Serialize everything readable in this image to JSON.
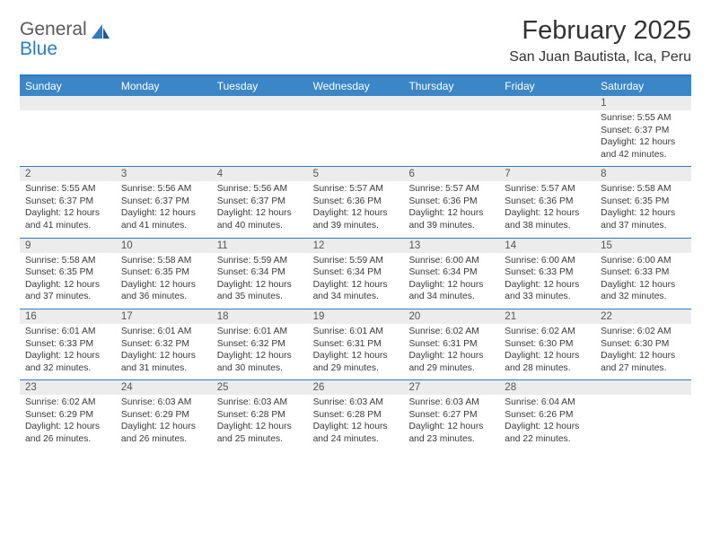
{
  "logo": {
    "word1": "General",
    "word2": "Blue"
  },
  "title": "February 2025",
  "location": "San Juan Bautista, Ica, Peru",
  "colors": {
    "header_bar": "#3b86c7",
    "accent_line": "#2f7bbf",
    "daynum_bg": "#ececec",
    "bg": "#ffffff",
    "text": "#3a3a3a"
  },
  "fonts": {
    "title_pt": 29,
    "location_pt": 16,
    "dayheader_pt": 12,
    "daynum_pt": 11.5,
    "body_pt": 10.3
  },
  "dayHeaders": [
    "Sunday",
    "Monday",
    "Tuesday",
    "Wednesday",
    "Thursday",
    "Friday",
    "Saturday"
  ],
  "weeks": [
    [
      {
        "n": "",
        "lines": [
          "",
          "",
          "",
          ""
        ]
      },
      {
        "n": "",
        "lines": [
          "",
          "",
          "",
          ""
        ]
      },
      {
        "n": "",
        "lines": [
          "",
          "",
          "",
          ""
        ]
      },
      {
        "n": "",
        "lines": [
          "",
          "",
          "",
          ""
        ]
      },
      {
        "n": "",
        "lines": [
          "",
          "",
          "",
          ""
        ]
      },
      {
        "n": "",
        "lines": [
          "",
          "",
          "",
          ""
        ]
      },
      {
        "n": "1",
        "lines": [
          "Sunrise: 5:55 AM",
          "Sunset: 6:37 PM",
          "Daylight: 12 hours",
          "and 42 minutes."
        ]
      }
    ],
    [
      {
        "n": "2",
        "lines": [
          "Sunrise: 5:55 AM",
          "Sunset: 6:37 PM",
          "Daylight: 12 hours",
          "and 41 minutes."
        ]
      },
      {
        "n": "3",
        "lines": [
          "Sunrise: 5:56 AM",
          "Sunset: 6:37 PM",
          "Daylight: 12 hours",
          "and 41 minutes."
        ]
      },
      {
        "n": "4",
        "lines": [
          "Sunrise: 5:56 AM",
          "Sunset: 6:37 PM",
          "Daylight: 12 hours",
          "and 40 minutes."
        ]
      },
      {
        "n": "5",
        "lines": [
          "Sunrise: 5:57 AM",
          "Sunset: 6:36 PM",
          "Daylight: 12 hours",
          "and 39 minutes."
        ]
      },
      {
        "n": "6",
        "lines": [
          "Sunrise: 5:57 AM",
          "Sunset: 6:36 PM",
          "Daylight: 12 hours",
          "and 39 minutes."
        ]
      },
      {
        "n": "7",
        "lines": [
          "Sunrise: 5:57 AM",
          "Sunset: 6:36 PM",
          "Daylight: 12 hours",
          "and 38 minutes."
        ]
      },
      {
        "n": "8",
        "lines": [
          "Sunrise: 5:58 AM",
          "Sunset: 6:35 PM",
          "Daylight: 12 hours",
          "and 37 minutes."
        ]
      }
    ],
    [
      {
        "n": "9",
        "lines": [
          "Sunrise: 5:58 AM",
          "Sunset: 6:35 PM",
          "Daylight: 12 hours",
          "and 37 minutes."
        ]
      },
      {
        "n": "10",
        "lines": [
          "Sunrise: 5:58 AM",
          "Sunset: 6:35 PM",
          "Daylight: 12 hours",
          "and 36 minutes."
        ]
      },
      {
        "n": "11",
        "lines": [
          "Sunrise: 5:59 AM",
          "Sunset: 6:34 PM",
          "Daylight: 12 hours",
          "and 35 minutes."
        ]
      },
      {
        "n": "12",
        "lines": [
          "Sunrise: 5:59 AM",
          "Sunset: 6:34 PM",
          "Daylight: 12 hours",
          "and 34 minutes."
        ]
      },
      {
        "n": "13",
        "lines": [
          "Sunrise: 6:00 AM",
          "Sunset: 6:34 PM",
          "Daylight: 12 hours",
          "and 34 minutes."
        ]
      },
      {
        "n": "14",
        "lines": [
          "Sunrise: 6:00 AM",
          "Sunset: 6:33 PM",
          "Daylight: 12 hours",
          "and 33 minutes."
        ]
      },
      {
        "n": "15",
        "lines": [
          "Sunrise: 6:00 AM",
          "Sunset: 6:33 PM",
          "Daylight: 12 hours",
          "and 32 minutes."
        ]
      }
    ],
    [
      {
        "n": "16",
        "lines": [
          "Sunrise: 6:01 AM",
          "Sunset: 6:33 PM",
          "Daylight: 12 hours",
          "and 32 minutes."
        ]
      },
      {
        "n": "17",
        "lines": [
          "Sunrise: 6:01 AM",
          "Sunset: 6:32 PM",
          "Daylight: 12 hours",
          "and 31 minutes."
        ]
      },
      {
        "n": "18",
        "lines": [
          "Sunrise: 6:01 AM",
          "Sunset: 6:32 PM",
          "Daylight: 12 hours",
          "and 30 minutes."
        ]
      },
      {
        "n": "19",
        "lines": [
          "Sunrise: 6:01 AM",
          "Sunset: 6:31 PM",
          "Daylight: 12 hours",
          "and 29 minutes."
        ]
      },
      {
        "n": "20",
        "lines": [
          "Sunrise: 6:02 AM",
          "Sunset: 6:31 PM",
          "Daylight: 12 hours",
          "and 29 minutes."
        ]
      },
      {
        "n": "21",
        "lines": [
          "Sunrise: 6:02 AM",
          "Sunset: 6:30 PM",
          "Daylight: 12 hours",
          "and 28 minutes."
        ]
      },
      {
        "n": "22",
        "lines": [
          "Sunrise: 6:02 AM",
          "Sunset: 6:30 PM",
          "Daylight: 12 hours",
          "and 27 minutes."
        ]
      }
    ],
    [
      {
        "n": "23",
        "lines": [
          "Sunrise: 6:02 AM",
          "Sunset: 6:29 PM",
          "Daylight: 12 hours",
          "and 26 minutes."
        ]
      },
      {
        "n": "24",
        "lines": [
          "Sunrise: 6:03 AM",
          "Sunset: 6:29 PM",
          "Daylight: 12 hours",
          "and 26 minutes."
        ]
      },
      {
        "n": "25",
        "lines": [
          "Sunrise: 6:03 AM",
          "Sunset: 6:28 PM",
          "Daylight: 12 hours",
          "and 25 minutes."
        ]
      },
      {
        "n": "26",
        "lines": [
          "Sunrise: 6:03 AM",
          "Sunset: 6:28 PM",
          "Daylight: 12 hours",
          "and 24 minutes."
        ]
      },
      {
        "n": "27",
        "lines": [
          "Sunrise: 6:03 AM",
          "Sunset: 6:27 PM",
          "Daylight: 12 hours",
          "and 23 minutes."
        ]
      },
      {
        "n": "28",
        "lines": [
          "Sunrise: 6:04 AM",
          "Sunset: 6:26 PM",
          "Daylight: 12 hours",
          "and 22 minutes."
        ]
      },
      {
        "n": "",
        "lines": [
          "",
          "",
          "",
          ""
        ]
      }
    ]
  ]
}
